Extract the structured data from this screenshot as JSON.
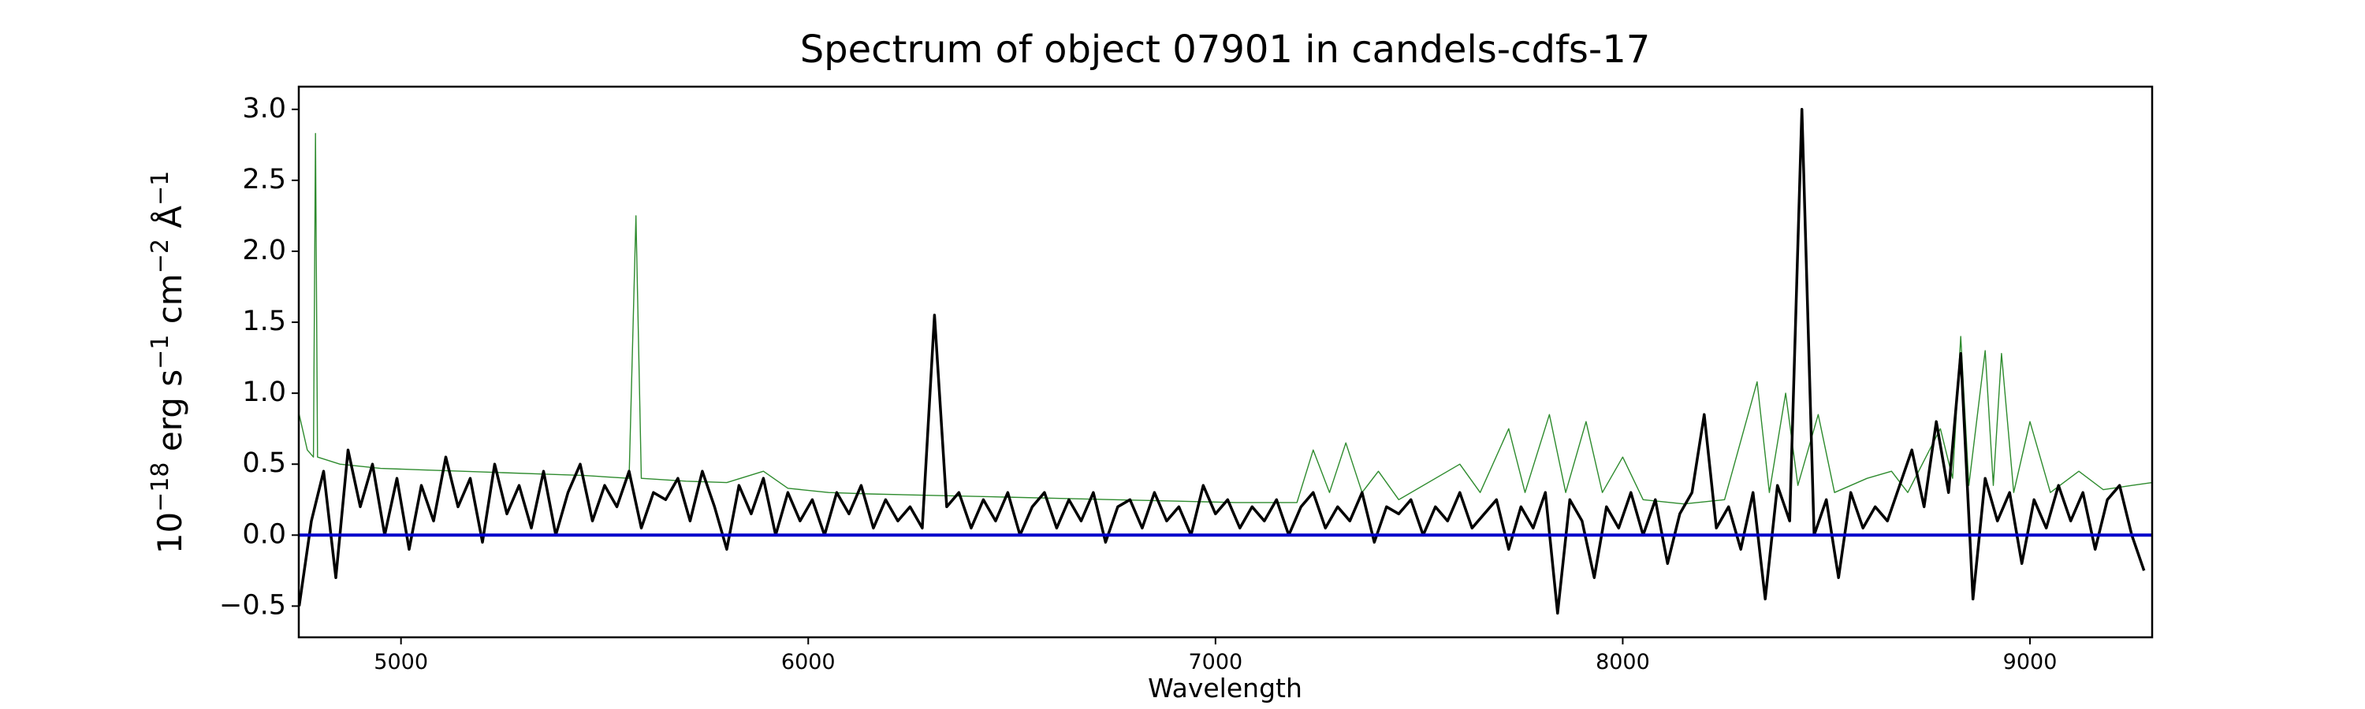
{
  "chart_data": {
    "type": "line",
    "title": "Spectrum of object 07901 in candels-cdfs-17",
    "xlabel": "Wavelength",
    "ylabel": [
      {
        "text": "10",
        "sup": "−18"
      },
      {
        "text": " erg s",
        "sup": "−1"
      },
      {
        "text": " cm",
        "sup": "−2"
      },
      {
        "text": " Å",
        "sup": "−1"
      }
    ],
    "xlim": [
      4749,
      9300
    ],
    "ylim": [
      -0.72,
      3.16
    ],
    "xticks": [
      5000,
      6000,
      7000,
      8000,
      9000
    ],
    "yticks": [
      {
        "value": -0.5,
        "label": "−0.5"
      },
      {
        "value": 0,
        "label": "0.0"
      },
      {
        "value": 0.5,
        "label": "0.5"
      },
      {
        "value": 1,
        "label": "1.0"
      },
      {
        "value": 1.5,
        "label": "1.5"
      },
      {
        "value": 2,
        "label": "2.0"
      },
      {
        "value": 2.5,
        "label": "2.5"
      },
      {
        "value": 3,
        "label": "3.0"
      }
    ],
    "grid": false,
    "series": [
      {
        "color": "#2e8b2e",
        "width": 1.4,
        "x": [
          4750,
          4770,
          4785,
          4790,
          4795,
          4850,
          4950,
          5050,
          5150,
          5250,
          5350,
          5450,
          5560,
          5577,
          5590,
          5700,
          5800,
          5890,
          5950,
          6050,
          6150,
          6300,
          6450,
          6600,
          6750,
          6900,
          7050,
          7200,
          7240,
          7280,
          7320,
          7360,
          7400,
          7450,
          7600,
          7650,
          7720,
          7760,
          7820,
          7860,
          7910,
          7950,
          8000,
          8050,
          8150,
          8250,
          8330,
          8360,
          8400,
          8430,
          8480,
          8520,
          8600,
          8660,
          8700,
          8780,
          8810,
          8830,
          8850,
          8890,
          8910,
          8930,
          8960,
          9000,
          9050,
          9120,
          9180,
          9250,
          9300
        ],
        "values": [
          0.85,
          0.6,
          0.55,
          2.83,
          0.55,
          0.5,
          0.47,
          0.46,
          0.45,
          0.44,
          0.43,
          0.42,
          0.4,
          2.25,
          0.4,
          0.38,
          0.37,
          0.45,
          0.33,
          0.3,
          0.29,
          0.28,
          0.27,
          0.26,
          0.25,
          0.24,
          0.23,
          0.23,
          0.6,
          0.3,
          0.65,
          0.3,
          0.45,
          0.25,
          0.5,
          0.3,
          0.75,
          0.3,
          0.85,
          0.3,
          0.8,
          0.3,
          0.55,
          0.25,
          0.22,
          0.25,
          1.08,
          0.3,
          1.0,
          0.35,
          0.85,
          0.3,
          0.4,
          0.45,
          0.3,
          0.75,
          0.4,
          1.4,
          0.35,
          1.3,
          0.35,
          1.28,
          0.3,
          0.8,
          0.3,
          0.45,
          0.32,
          0.35,
          0.37
        ]
      },
      {
        "color": "#000000",
        "width": 3.5,
        "x": [
          4750,
          4780,
          4810,
          4840,
          4870,
          4900,
          4930,
          4960,
          4990,
          5020,
          5050,
          5080,
          5110,
          5140,
          5170,
          5200,
          5230,
          5260,
          5290,
          5320,
          5350,
          5380,
          5410,
          5440,
          5470,
          5500,
          5530,
          5560,
          5590,
          5620,
          5650,
          5680,
          5710,
          5740,
          5770,
          5800,
          5830,
          5860,
          5890,
          5920,
          5950,
          5980,
          6010,
          6040,
          6070,
          6100,
          6130,
          6160,
          6190,
          6220,
          6250,
          6280,
          6310,
          6340,
          6370,
          6400,
          6430,
          6460,
          6490,
          6520,
          6550,
          6580,
          6610,
          6640,
          6670,
          6700,
          6730,
          6760,
          6790,
          6820,
          6850,
          6880,
          6910,
          6940,
          6970,
          7000,
          7030,
          7060,
          7090,
          7120,
          7150,
          7180,
          7210,
          7240,
          7270,
          7300,
          7330,
          7360,
          7390,
          7420,
          7450,
          7480,
          7510,
          7540,
          7570,
          7600,
          7630,
          7660,
          7690,
          7720,
          7750,
          7780,
          7810,
          7840,
          7870,
          7900,
          7930,
          7960,
          7990,
          8020,
          8050,
          8080,
          8110,
          8140,
          8170,
          8200,
          8230,
          8260,
          8290,
          8320,
          8350,
          8380,
          8410,
          8440,
          8470,
          8500,
          8530,
          8560,
          8590,
          8620,
          8650,
          8680,
          8710,
          8740,
          8770,
          8800,
          8830,
          8860,
          8890,
          8920,
          8950,
          8980,
          9010,
          9040,
          9070,
          9100,
          9130,
          9160,
          9190,
          9220,
          9250,
          9280
        ],
        "values": [
          -0.5,
          0.1,
          0.45,
          -0.3,
          0.6,
          0.2,
          0.5,
          0.0,
          0.4,
          -0.1,
          0.35,
          0.1,
          0.55,
          0.2,
          0.4,
          -0.05,
          0.5,
          0.15,
          0.35,
          0.05,
          0.45,
          0.0,
          0.3,
          0.5,
          0.1,
          0.35,
          0.2,
          0.45,
          0.05,
          0.3,
          0.25,
          0.4,
          0.1,
          0.45,
          0.2,
          -0.1,
          0.35,
          0.15,
          0.4,
          0.0,
          0.3,
          0.1,
          0.25,
          0.0,
          0.3,
          0.15,
          0.35,
          0.05,
          0.25,
          0.1,
          0.2,
          0.05,
          1.55,
          0.2,
          0.3,
          0.05,
          0.25,
          0.1,
          0.3,
          0.0,
          0.2,
          0.3,
          0.05,
          0.25,
          0.1,
          0.3,
          -0.05,
          0.2,
          0.25,
          0.05,
          0.3,
          0.1,
          0.2,
          0.0,
          0.35,
          0.15,
          0.25,
          0.05,
          0.2,
          0.1,
          0.25,
          0.0,
          0.2,
          0.3,
          0.05,
          0.2,
          0.1,
          0.3,
          -0.05,
          0.2,
          0.15,
          0.25,
          0.0,
          0.2,
          0.1,
          0.3,
          0.05,
          0.15,
          0.25,
          -0.1,
          0.2,
          0.05,
          0.3,
          -0.55,
          0.25,
          0.1,
          -0.3,
          0.2,
          0.05,
          0.3,
          0.0,
          0.25,
          -0.2,
          0.15,
          0.3,
          0.85,
          0.05,
          0.2,
          -0.1,
          0.3,
          -0.45,
          0.35,
          0.1,
          3.0,
          0.0,
          0.25,
          -0.3,
          0.3,
          0.05,
          0.2,
          0.1,
          0.35,
          0.6,
          0.2,
          0.8,
          0.3,
          1.28,
          -0.45,
          0.4,
          0.1,
          0.3,
          -0.2,
          0.25,
          0.05,
          0.35,
          0.1,
          0.3,
          -0.1,
          0.25,
          0.35,
          0.0,
          -0.25
        ]
      },
      {
        "color": "#0000cc",
        "width": 4,
        "x": [
          4749,
          9300
        ],
        "values": [
          0,
          0
        ]
      }
    ]
  }
}
